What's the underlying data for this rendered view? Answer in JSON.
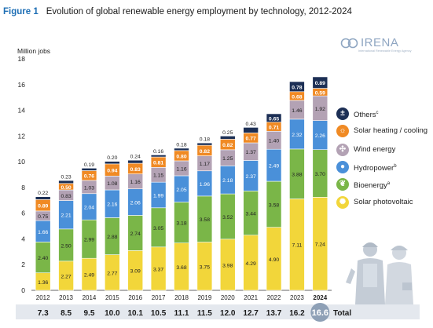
{
  "figure": {
    "number": "Figure 1",
    "title": "Evolution of global renewable energy employment by technology, 2012-2024"
  },
  "logo": {
    "name": "IRENA",
    "tagline": "International Renewable Energy Agency"
  },
  "chart_data": {
    "type": "bar",
    "stacked": true,
    "ylabel": "Million jobs",
    "ylim": [
      0,
      18
    ],
    "yticks": [
      0,
      2,
      4,
      6,
      8,
      10,
      12,
      14,
      16,
      18
    ],
    "grid": false,
    "legend_position": "right",
    "categories": [
      "2012",
      "2013",
      "2014",
      "2015",
      "2016",
      "2017",
      "2018",
      "2019",
      "2020",
      "2021",
      "2022",
      "2023",
      "2024"
    ],
    "series": [
      {
        "name": "Solar photovoltaic",
        "color": "#f2d63a",
        "values": [
          1.36,
          2.27,
          2.49,
          2.77,
          3.09,
          3.37,
          3.68,
          3.75,
          3.98,
          4.29,
          4.9,
          7.11,
          7.24
        ]
      },
      {
        "name": "Bioenergy",
        "superscript": "a",
        "color": "#7ab648",
        "values": [
          2.4,
          2.5,
          2.99,
          2.88,
          2.74,
          3.05,
          3.18,
          3.58,
          3.52,
          3.44,
          3.58,
          3.88,
          3.7
        ]
      },
      {
        "name": "Hydropower",
        "superscript": "b",
        "color": "#4a90d9",
        "values": [
          1.66,
          2.21,
          2.04,
          2.16,
          2.06,
          1.99,
          2.05,
          1.96,
          2.18,
          2.37,
          2.49,
          2.32,
          2.26
        ]
      },
      {
        "name": "Wind energy",
        "color": "#b3a2b4",
        "values": [
          0.75,
          0.83,
          1.03,
          1.08,
          1.16,
          1.15,
          1.16,
          1.17,
          1.25,
          1.37,
          1.4,
          1.46,
          1.92
        ]
      },
      {
        "name": "Solar heating / cooling",
        "color": "#f08a24",
        "values": [
          0.89,
          0.5,
          0.76,
          0.94,
          0.83,
          0.81,
          0.8,
          0.82,
          0.82,
          0.77,
          0.71,
          0.68,
          0.59
        ]
      },
      {
        "name": "Others",
        "superscript": "c",
        "color": "#1c2f55",
        "values": [
          0.22,
          0.23,
          0.19,
          0.2,
          0.24,
          0.16,
          0.18,
          0.18,
          0.25,
          0.43,
          0.65,
          0.78,
          0.89
        ]
      }
    ],
    "labels": {
      "Solar photovoltaic": [
        "1.36",
        "2.27",
        "2.49",
        "2.77",
        "3.09",
        "3.37",
        "3.68",
        "3.75",
        "3.98",
        "4.29",
        "4.90",
        "7.11",
        "7.24"
      ],
      "Bioenergy": [
        "2.40",
        "2.50",
        "2.99",
        "2.88",
        "2.74",
        "3.05",
        "3.18",
        "3.58",
        "3.52",
        "3.44",
        "3.58",
        "3.88",
        "3.70"
      ],
      "Hydropower": [
        "1.66",
        "2.21",
        "2.04",
        "2.16",
        "2.06",
        "1.99",
        "2.05",
        "1.96",
        "2.18",
        "2.37",
        "2.49",
        "2.32",
        "2.26"
      ],
      "Wind energy": [
        "0.75",
        "0.83",
        "1.03",
        "1.08",
        "1.16",
        "1.15",
        "1.16",
        "1.17",
        "1.25",
        "1.37",
        "1.40",
        "1.46",
        "1.92"
      ],
      "Solar heating / cooling": [
        "0.89",
        "0.50",
        "0.76",
        "0.94",
        "0.83",
        "0.81",
        "0.80",
        "0.82",
        "0.82",
        "0.77",
        "0.71",
        "0.68",
        "0.59"
      ],
      "Others": [
        "0.22",
        "0.23",
        "0.19",
        "0.20",
        "0.24",
        "0.16",
        "0.18",
        "0.18",
        "0.25",
        "0.43",
        "0.65",
        "0.78",
        "0.89"
      ]
    },
    "totals": [
      "7.3",
      "8.5",
      "9.5",
      "10.0",
      "10.1",
      "10.5",
      "11.1",
      "11.5",
      "12.0",
      "12.7",
      "13.7",
      "16.2",
      "16.6"
    ],
    "totals_label": "Total",
    "highlight_category": "2024"
  },
  "legend": [
    {
      "label": "Others",
      "superscript": "c",
      "icon": "plus-minus-icon",
      "color": "#1c2f55"
    },
    {
      "label": "Solar heating / cooling",
      "icon": "sun-outline-icon",
      "color": "#f08a24"
    },
    {
      "label": "Wind energy",
      "icon": "wind-turbine-icon",
      "color": "#b3a2b4"
    },
    {
      "label": "Hydropower",
      "superscript": "b",
      "icon": "water-drop-icon",
      "color": "#4a90d9"
    },
    {
      "label": "Bioenergy",
      "superscript": "a",
      "icon": "leaf-icon",
      "color": "#7ab648"
    },
    {
      "label": "Solar photovoltaic",
      "icon": "sun-icon",
      "color": "#f2d63a"
    }
  ]
}
